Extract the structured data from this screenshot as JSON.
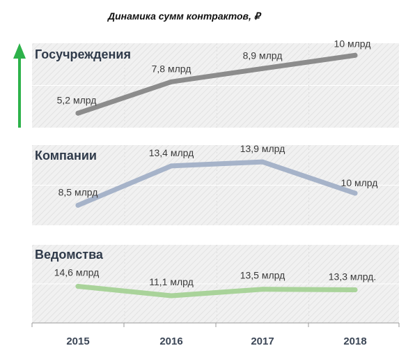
{
  "title": "Динамика сумм контрактов, ₽",
  "colors": {
    "arrow": "#2db24a",
    "panel_bg": "#f1f1f1",
    "hatch": "#e3e3e3",
    "axis": "#9a9a9a"
  },
  "chart_data": [
    {
      "type": "line",
      "title": "Госучреждения",
      "x": [
        "2015",
        "2016",
        "2017",
        "2018"
      ],
      "series": [
        {
          "values": [
            5.2,
            7.8,
            8.9,
            10
          ],
          "labels": [
            "5,2 млрд",
            "7,8 млрд",
            "8,9 млрд",
            "10 млрд"
          ],
          "color": "#8c8c8c"
        }
      ],
      "ylim": [
        4,
        11
      ],
      "grid": true
    },
    {
      "type": "line",
      "title": "Компании",
      "x": [
        "2015",
        "2016",
        "2017",
        "2018"
      ],
      "series": [
        {
          "values": [
            8.5,
            13.4,
            13.9,
            10
          ],
          "labels": [
            "8,5 млрд",
            "13,4 млрд",
            "13,9 млрд",
            "10 млрд"
          ],
          "color": "#a6b3c9"
        }
      ],
      "ylim": [
        6,
        16
      ],
      "grid": true
    },
    {
      "type": "line",
      "title": "Ведомства",
      "x": [
        "2015",
        "2016",
        "2017",
        "2018"
      ],
      "series": [
        {
          "values": [
            14.6,
            11.1,
            13.5,
            13.3
          ],
          "labels": [
            "14,6 млрд",
            "11,1 млрд",
            "13,5 млрд",
            "13,3 млрд."
          ],
          "color": "#a9d39a"
        }
      ],
      "ylim": [
        1,
        30
      ],
      "grid": true
    }
  ]
}
